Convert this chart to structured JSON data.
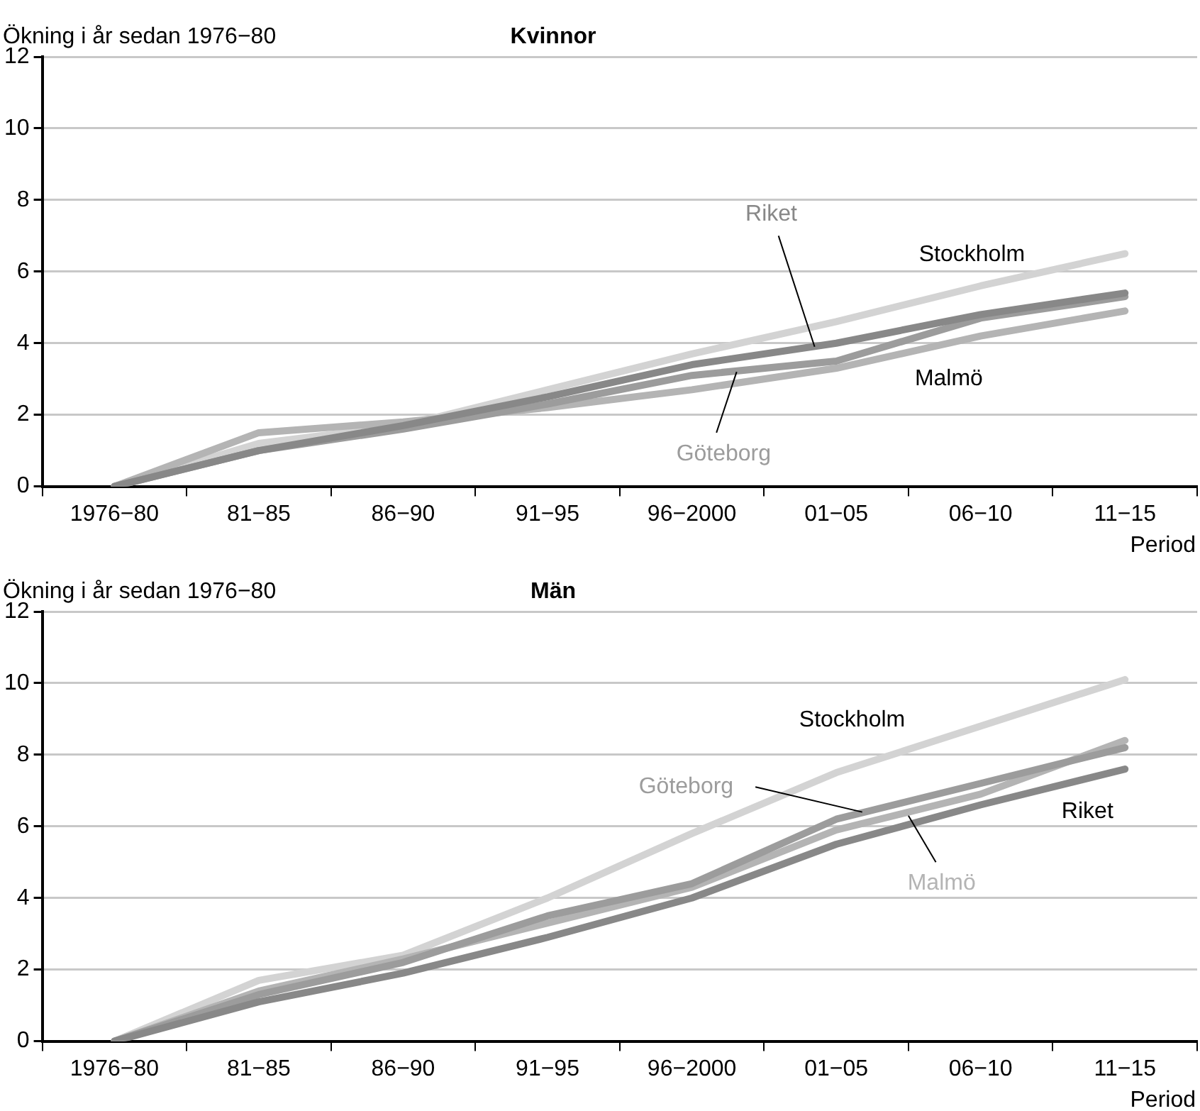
{
  "chart_data": [
    {
      "type": "line",
      "title": "Kvinnor",
      "ylabel": "Ökning i år sedan 1976−80",
      "xlabel": "Period",
      "categories": [
        "1976−80",
        "81−85",
        "86−90",
        "91−95",
        "96−2000",
        "01−05",
        "06−10",
        "11−15"
      ],
      "ylim": [
        0,
        12
      ],
      "yticks": [
        0,
        2,
        4,
        6,
        8,
        10,
        12
      ],
      "grid": "y",
      "legend": false,
      "marker": "none",
      "line_style": "solid",
      "series": [
        {
          "name": "Stockholm",
          "color": "#d3d3d3",
          "values": [
            0,
            1.2,
            1.7,
            2.7,
            3.7,
            4.6,
            5.6,
            6.5
          ]
        },
        {
          "name": "Malmö",
          "color": "#b4b4b4",
          "values": [
            0,
            1.5,
            1.8,
            2.2,
            2.7,
            3.3,
            4.2,
            4.9
          ]
        },
        {
          "name": "Göteborg",
          "color": "#9c9c9c",
          "values": [
            0,
            1.0,
            1.6,
            2.3,
            3.1,
            3.5,
            4.7,
            5.3
          ]
        },
        {
          "name": "Riket",
          "color": "#888888",
          "values": [
            0,
            1.0,
            1.7,
            2.5,
            3.4,
            4.0,
            4.8,
            5.4
          ]
        }
      ]
    },
    {
      "type": "line",
      "title": "Män",
      "ylabel": "Ökning i år sedan 1976−80",
      "xlabel": "Period",
      "categories": [
        "1976−80",
        "81−85",
        "86−90",
        "91−95",
        "96−2000",
        "01−05",
        "06−10",
        "11−15"
      ],
      "ylim": [
        0,
        12
      ],
      "yticks": [
        0,
        2,
        4,
        6,
        8,
        10,
        12
      ],
      "grid": "y",
      "legend": false,
      "marker": "none",
      "line_style": "solid",
      "series": [
        {
          "name": "Stockholm",
          "color": "#d3d3d3",
          "values": [
            0,
            1.7,
            2.4,
            4.0,
            5.8,
            7.5,
            8.8,
            10.1
          ]
        },
        {
          "name": "Malmö",
          "color": "#b4b4b4",
          "values": [
            0,
            1.4,
            2.3,
            3.3,
            4.3,
            5.9,
            6.9,
            8.4
          ]
        },
        {
          "name": "Göteborg",
          "color": "#9c9c9c",
          "values": [
            0,
            1.3,
            2.2,
            3.5,
            4.4,
            6.2,
            7.2,
            8.2
          ]
        },
        {
          "name": "Riket",
          "color": "#888888",
          "values": [
            0,
            1.1,
            1.9,
            2.9,
            4.0,
            5.5,
            6.6,
            7.6
          ]
        }
      ]
    }
  ]
}
